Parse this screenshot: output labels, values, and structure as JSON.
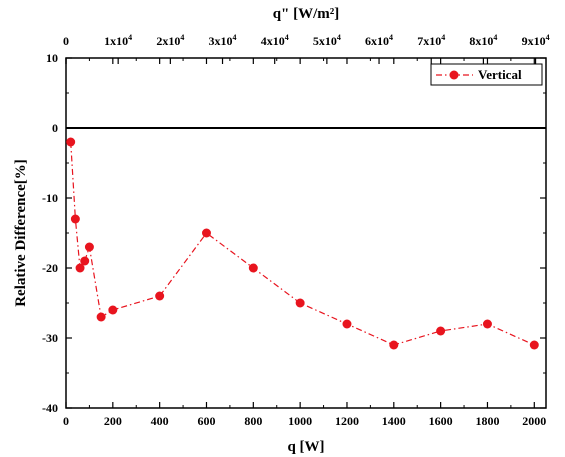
{
  "chart_data": {
    "type": "line",
    "title": "",
    "xlabel": "q [W]",
    "ylabel": "Relative Difference[%]",
    "top_xlabel": "q\" [W/m²]",
    "xlim": [
      0,
      2050
    ],
    "ylim": [
      -40,
      10
    ],
    "x_ticks": [
      0,
      200,
      400,
      600,
      800,
      1000,
      1200,
      1400,
      1600,
      1800,
      2000
    ],
    "x_tick_labels": [
      "0",
      "200",
      "400",
      "600",
      "800",
      "1000",
      "1200",
      "1400",
      "1600",
      "1800",
      "2000"
    ],
    "y_ticks": [
      10,
      0,
      -10,
      -20,
      -30,
      -40
    ],
    "y_tick_labels": [
      "10",
      "0",
      "-10",
      "-20",
      "-30",
      "-40"
    ],
    "top_ticks": [
      {
        "value": 0,
        "mantissa": "0",
        "exponent": ""
      },
      {
        "value": 10000,
        "mantissa": "1x10",
        "exponent": "4"
      },
      {
        "value": 20000,
        "mantissa": "2x10",
        "exponent": "4"
      },
      {
        "value": 30000,
        "mantissa": "3x10",
        "exponent": "4"
      },
      {
        "value": 40000,
        "mantissa": "4x10",
        "exponent": "4"
      },
      {
        "value": 50000,
        "mantissa": "5x10",
        "exponent": "4"
      },
      {
        "value": 60000,
        "mantissa": "6x10",
        "exponent": "4"
      },
      {
        "value": 70000,
        "mantissa": "7x10",
        "exponent": "4"
      },
      {
        "value": 80000,
        "mantissa": "8x10",
        "exponent": "4"
      },
      {
        "value": 90000,
        "mantissa": "9x10",
        "exponent": "4"
      }
    ],
    "top_xlim": [
      0,
      92000
    ],
    "reference_line_y": 0,
    "grid": false,
    "legend_position": "top-right",
    "series": [
      {
        "name": "Vertical",
        "color": "#e8141e",
        "line_style": "dash-dot",
        "marker": "circle",
        "x": [
          20,
          40,
          60,
          80,
          100,
          150,
          200,
          400,
          600,
          800,
          1000,
          1200,
          1400,
          1600,
          1800,
          2000
        ],
        "y": [
          -2,
          -13,
          -20,
          -19,
          -17,
          -27,
          -26,
          -24,
          -15,
          -20,
          -25,
          -28,
          -31,
          -29,
          -28,
          -31
        ]
      }
    ]
  }
}
